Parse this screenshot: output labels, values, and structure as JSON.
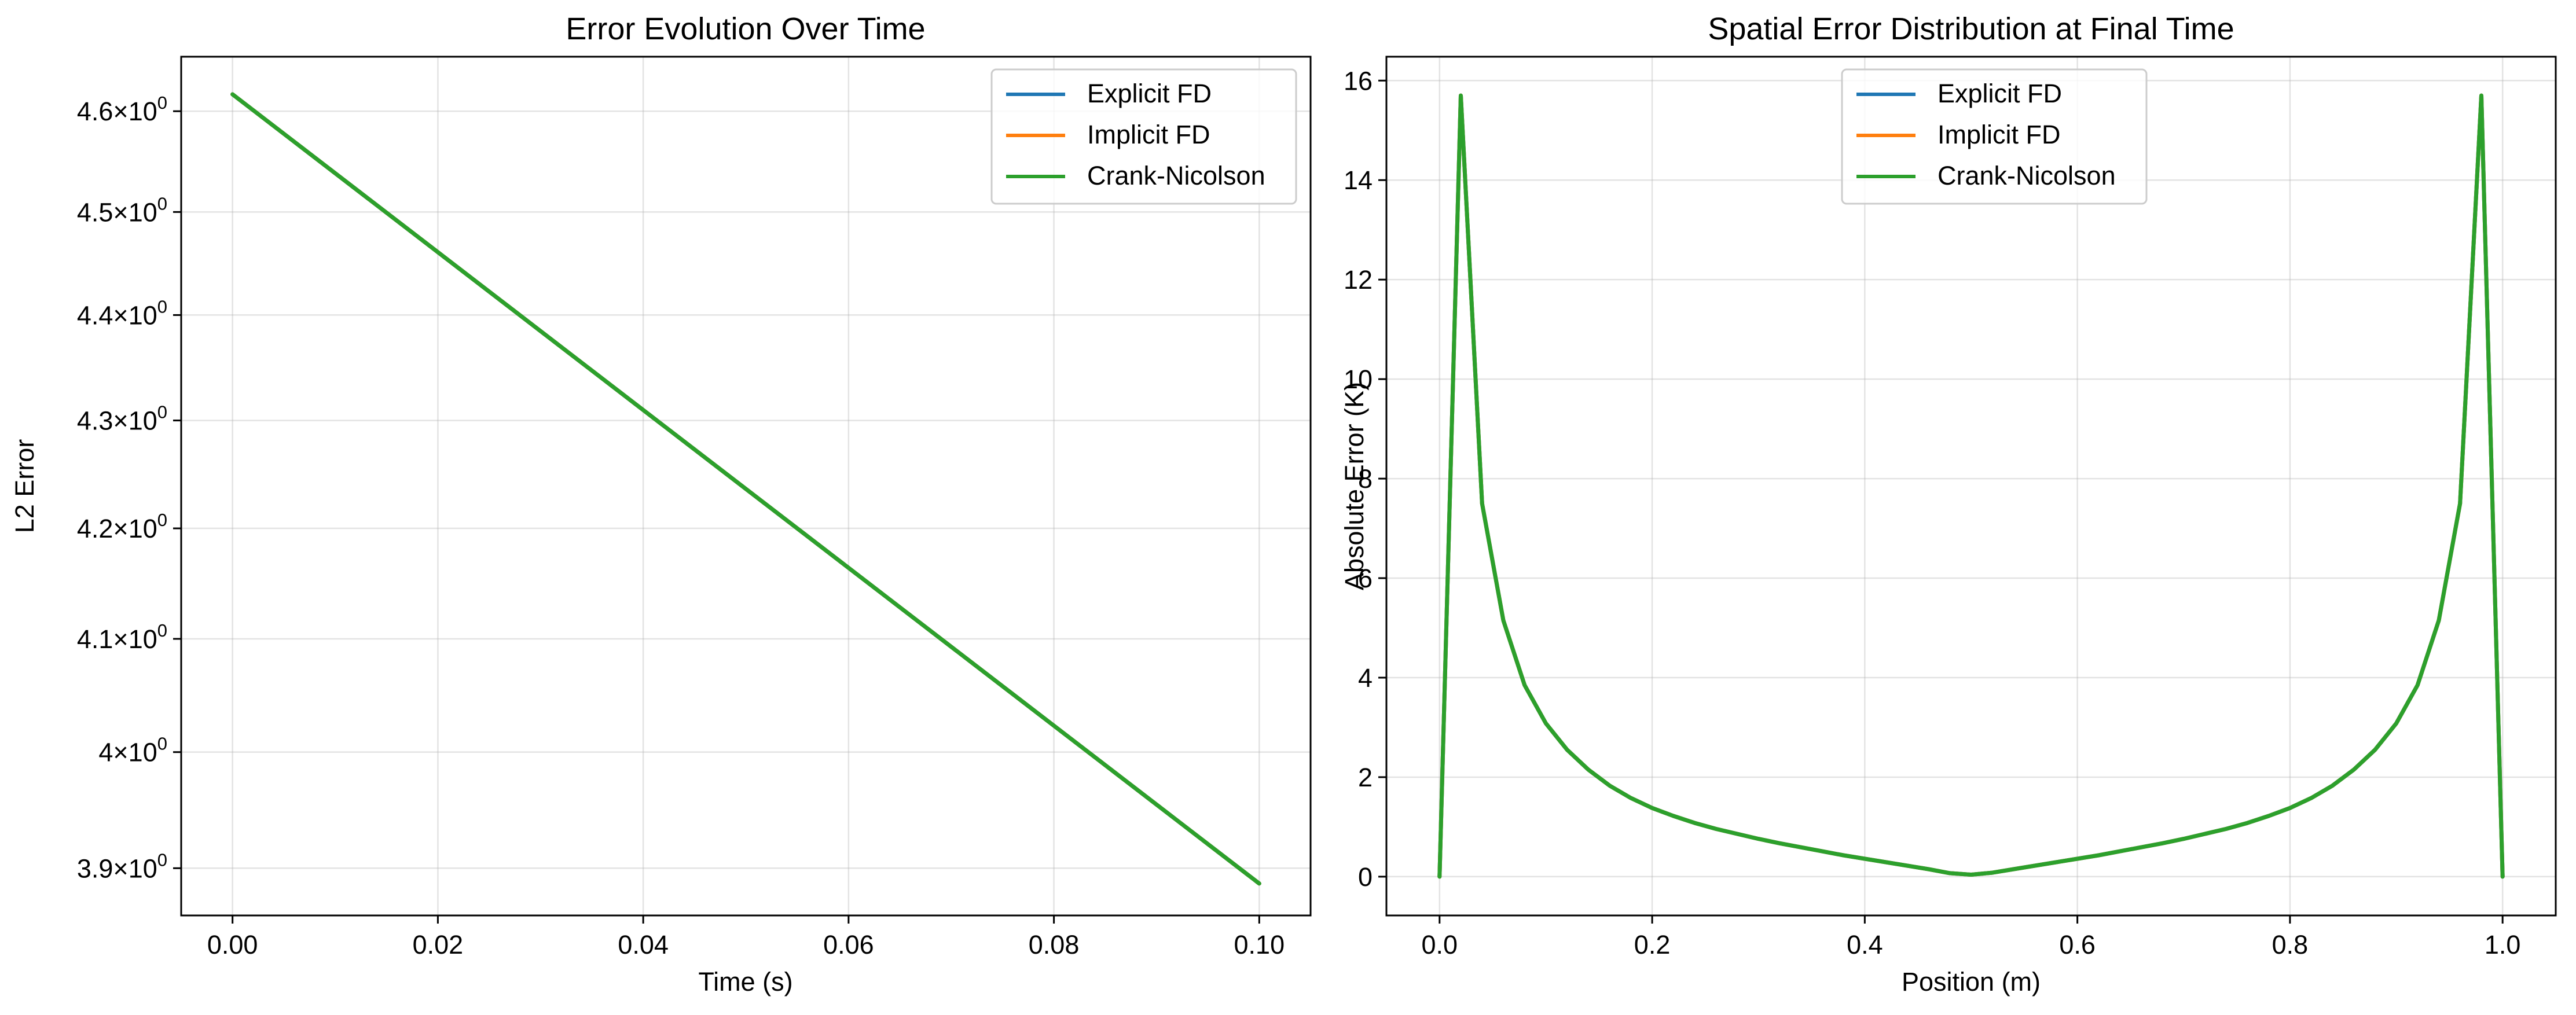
{
  "chart_data": [
    {
      "type": "line",
      "title": "Error Evolution Over Time",
      "xlabel": "Time (s)",
      "ylabel": "L2 Error",
      "yscale": "log",
      "xlim": [
        -0.005,
        0.105
      ],
      "ylim": [
        3.86,
        4.655
      ],
      "xticks": [
        0.0,
        0.02,
        0.04,
        0.06,
        0.08,
        0.1
      ],
      "xtick_labels": [
        "0.00",
        "0.02",
        "0.04",
        "0.06",
        "0.08",
        "0.10"
      ],
      "yticks": [
        3.9,
        4.0,
        4.1,
        4.2,
        4.3,
        4.4,
        4.5,
        4.6
      ],
      "ytick_bases": [
        "3.9",
        "4",
        "4.1",
        "4.2",
        "4.3",
        "4.4",
        "4.5",
        "4.6"
      ],
      "ytick_mult": "×",
      "ytick_power": "10",
      "ytick_exp": "0",
      "grid": true,
      "legend_position": "top-right",
      "series": [
        {
          "name": "Explicit FD",
          "color": "#1f77b4",
          "x": [
            0.0,
            0.1
          ],
          "y": [
            4.617,
            3.887
          ]
        },
        {
          "name": "Implicit FD",
          "color": "#ff7f0e",
          "x": [
            0.0,
            0.1
          ],
          "y": [
            4.617,
            3.887
          ]
        },
        {
          "name": "Crank-Nicolson",
          "color": "#2ca02c",
          "x": [
            0.0,
            0.1
          ],
          "y": [
            4.617,
            3.887
          ]
        }
      ]
    },
    {
      "type": "line",
      "title": "Spatial Error Distribution at Final Time",
      "xlabel": "Position (m)",
      "ylabel": "Absolute Error (K)",
      "xlim": [
        -0.05,
        1.05
      ],
      "ylim": [
        -0.78,
        16.48
      ],
      "xticks": [
        0.0,
        0.2,
        0.4,
        0.6,
        0.8,
        1.0
      ],
      "xtick_labels": [
        "0.0",
        "0.2",
        "0.4",
        "0.6",
        "0.8",
        "1.0"
      ],
      "yticks": [
        0,
        2,
        4,
        6,
        8,
        10,
        12,
        14,
        16
      ],
      "ytick_labels": [
        "0",
        "2",
        "4",
        "6",
        "8",
        "10",
        "12",
        "14",
        "16"
      ],
      "grid": true,
      "legend_position": "top-center",
      "series": [
        {
          "name": "Explicit FD",
          "color": "#1f77b4",
          "x": [
            0.0,
            0.02,
            0.04,
            0.06,
            0.08,
            0.1,
            0.12,
            0.14,
            0.16,
            0.18,
            0.2,
            0.22,
            0.24,
            0.26,
            0.28,
            0.3,
            0.32,
            0.34,
            0.36,
            0.38,
            0.4,
            0.42,
            0.44,
            0.46,
            0.48,
            0.5,
            0.52,
            0.54,
            0.56,
            0.58,
            0.6,
            0.62,
            0.64,
            0.66,
            0.68,
            0.7,
            0.72,
            0.74,
            0.76,
            0.78,
            0.8,
            0.82,
            0.84,
            0.86,
            0.88,
            0.9,
            0.92,
            0.94,
            0.96,
            0.98,
            1.0
          ],
          "y": [
            0.0,
            15.7,
            7.5,
            5.15,
            3.85,
            3.08,
            2.55,
            2.15,
            1.83,
            1.58,
            1.38,
            1.22,
            1.08,
            0.96,
            0.86,
            0.76,
            0.67,
            0.59,
            0.51,
            0.43,
            0.36,
            0.29,
            0.22,
            0.15,
            0.07,
            0.04,
            0.08,
            0.15,
            0.22,
            0.29,
            0.36,
            0.43,
            0.51,
            0.59,
            0.67,
            0.76,
            0.86,
            0.96,
            1.08,
            1.22,
            1.38,
            1.58,
            1.83,
            2.15,
            2.55,
            3.08,
            3.85,
            5.15,
            7.5,
            15.7,
            0.0
          ]
        },
        {
          "name": "Implicit FD",
          "color": "#ff7f0e",
          "x": [
            0.0,
            0.02,
            0.04,
            0.06,
            0.08,
            0.1,
            0.12,
            0.14,
            0.16,
            0.18,
            0.2,
            0.22,
            0.24,
            0.26,
            0.28,
            0.3,
            0.32,
            0.34,
            0.36,
            0.38,
            0.4,
            0.42,
            0.44,
            0.46,
            0.48,
            0.5,
            0.52,
            0.54,
            0.56,
            0.58,
            0.6,
            0.62,
            0.64,
            0.66,
            0.68,
            0.7,
            0.72,
            0.74,
            0.76,
            0.78,
            0.8,
            0.82,
            0.84,
            0.86,
            0.88,
            0.9,
            0.92,
            0.94,
            0.96,
            0.98,
            1.0
          ],
          "y": [
            0.0,
            15.7,
            7.5,
            5.15,
            3.85,
            3.08,
            2.55,
            2.15,
            1.83,
            1.58,
            1.38,
            1.22,
            1.08,
            0.96,
            0.86,
            0.76,
            0.67,
            0.59,
            0.51,
            0.43,
            0.36,
            0.29,
            0.22,
            0.15,
            0.07,
            0.04,
            0.08,
            0.15,
            0.22,
            0.29,
            0.36,
            0.43,
            0.51,
            0.59,
            0.67,
            0.76,
            0.86,
            0.96,
            1.08,
            1.22,
            1.38,
            1.58,
            1.83,
            2.15,
            2.55,
            3.08,
            3.85,
            5.15,
            7.5,
            15.7,
            0.0
          ]
        },
        {
          "name": "Crank-Nicolson",
          "color": "#2ca02c",
          "x": [
            0.0,
            0.02,
            0.04,
            0.06,
            0.08,
            0.1,
            0.12,
            0.14,
            0.16,
            0.18,
            0.2,
            0.22,
            0.24,
            0.26,
            0.28,
            0.3,
            0.32,
            0.34,
            0.36,
            0.38,
            0.4,
            0.42,
            0.44,
            0.46,
            0.48,
            0.5,
            0.52,
            0.54,
            0.56,
            0.58,
            0.6,
            0.62,
            0.64,
            0.66,
            0.68,
            0.7,
            0.72,
            0.74,
            0.76,
            0.78,
            0.8,
            0.82,
            0.84,
            0.86,
            0.88,
            0.9,
            0.92,
            0.94,
            0.96,
            0.98,
            1.0
          ],
          "y": [
            0.0,
            15.7,
            7.5,
            5.15,
            3.85,
            3.08,
            2.55,
            2.15,
            1.83,
            1.58,
            1.38,
            1.22,
            1.08,
            0.96,
            0.86,
            0.76,
            0.67,
            0.59,
            0.51,
            0.43,
            0.36,
            0.29,
            0.22,
            0.15,
            0.07,
            0.04,
            0.08,
            0.15,
            0.22,
            0.29,
            0.36,
            0.43,
            0.51,
            0.59,
            0.67,
            0.76,
            0.86,
            0.96,
            1.08,
            1.22,
            1.38,
            1.58,
            1.83,
            2.15,
            2.55,
            3.08,
            3.85,
            5.15,
            7.5,
            15.7,
            0.0
          ]
        }
      ]
    }
  ]
}
